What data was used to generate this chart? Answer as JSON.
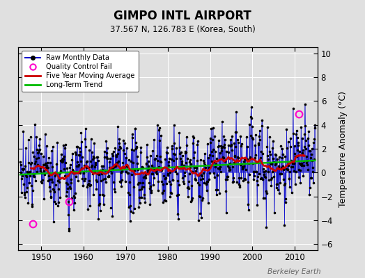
{
  "title": "GIMPO INTL AIRPORT",
  "subtitle": "37.567 N, 126.783 E (Korea, South)",
  "ylabel": "Temperature Anomaly (°C)",
  "watermark": "Berkeley Earth",
  "ylim": [
    -6.5,
    10.5
  ],
  "yticks": [
    -6,
    -4,
    -2,
    0,
    2,
    4,
    6,
    8,
    10
  ],
  "xlim": [
    1944.5,
    2015.5
  ],
  "xticks": [
    1950,
    1960,
    1970,
    1980,
    1990,
    2000,
    2010
  ],
  "bg_color": "#e0e0e0",
  "raw_line_color": "#0000cc",
  "raw_dot_color": "#000000",
  "moving_avg_color": "#cc0000",
  "trend_color": "#00bb00",
  "qc_fail_color": "#ff00cc",
  "seed": 42,
  "start_year": 1945,
  "end_year": 2014,
  "noise_std": 1.8,
  "qc_fail_points": [
    [
      1948.0,
      -4.3
    ],
    [
      1956.5,
      -2.4
    ],
    [
      2011.0,
      4.9
    ]
  ]
}
